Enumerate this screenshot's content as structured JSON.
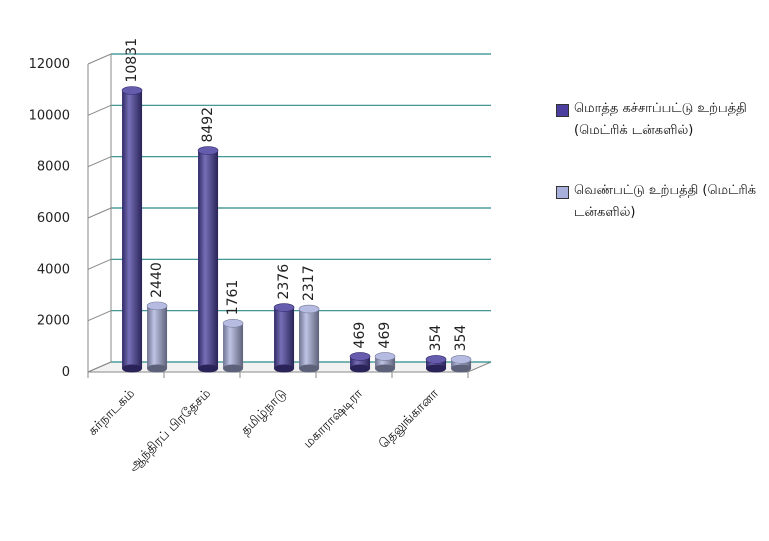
{
  "chart_data": {
    "type": "bar",
    "categories": [
      "கர்நாடகம்",
      "ஆந்திரப் பிரதேசம்",
      "தமிழ்நாடு",
      "மகாராஷ்டிரா",
      "தெலுங்கானா"
    ],
    "series": [
      {
        "name": "மொத்த கச்சாப்பட்டு உற்பத்தி (மெட்ரிக் டன்களில்)",
        "values": [
          10831,
          8492,
          2376,
          469,
          354
        ]
      },
      {
        "name": "வெண்பட்டு உற்பத்தி (மெட்ரிக் டன்களில்)",
        "values": [
          2440,
          1761,
          2317,
          469,
          354
        ]
      }
    ],
    "y_ticks": [
      "0",
      "2000",
      "4000",
      "6000",
      "8000",
      "10000",
      "12000"
    ],
    "ylim": [
      0,
      12000
    ],
    "grid": true,
    "legend_position": "right",
    "colors": {
      "series1": "#4a3f9e",
      "series2": "#a9b0dc",
      "grid": "#2c8a8a",
      "axis": "#888888"
    }
  }
}
